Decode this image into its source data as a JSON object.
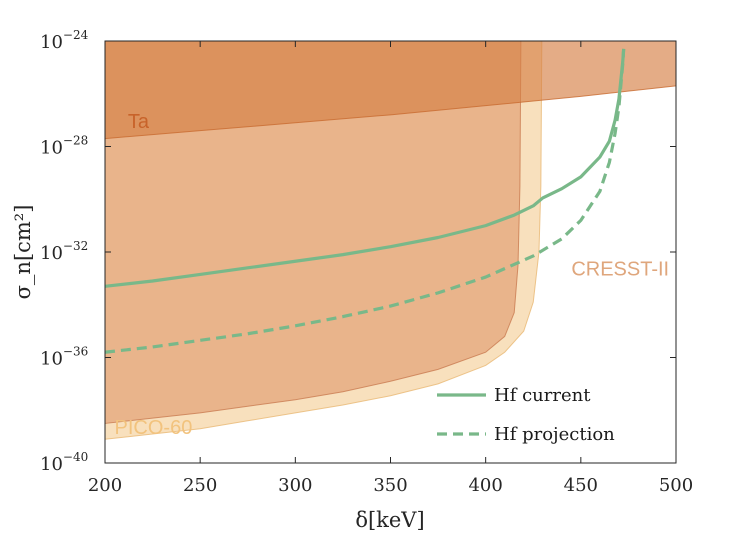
{
  "chart_data": {
    "type": "line",
    "xlabel": "δ[keV]",
    "ylabel": "σ_n[cm²]",
    "xlim": [
      200,
      500
    ],
    "ylim_log10": [
      -40,
      -24
    ],
    "x_ticks": [
      200,
      250,
      300,
      350,
      400,
      450,
      500
    ],
    "y_ticks": [
      {
        "base": "10",
        "exp": "−24",
        "value": -24
      },
      {
        "base": "10",
        "exp": "−28",
        "value": -28
      },
      {
        "base": "10",
        "exp": "−32",
        "value": -32
      },
      {
        "base": "10",
        "exp": "−36",
        "value": -36
      },
      {
        "base": "10",
        "exp": "−40",
        "value": -40
      }
    ],
    "regions": [
      {
        "name": "PICO-60",
        "color": "#f5cf9a",
        "edge_color": "#e8b873",
        "opacity": 0.65,
        "boundary_log10": [
          [
            200,
            -39.1
          ],
          [
            225,
            -38.9
          ],
          [
            250,
            -38.7
          ],
          [
            275,
            -38.4
          ],
          [
            300,
            -38.1
          ],
          [
            325,
            -37.8
          ],
          [
            350,
            -37.45
          ],
          [
            375,
            -37.0
          ],
          [
            400,
            -36.3
          ],
          [
            410,
            -35.8
          ],
          [
            420,
            -35.0
          ],
          [
            425,
            -33.9
          ],
          [
            428,
            -32.0
          ],
          [
            429,
            -29.5
          ],
          [
            429.5,
            -24
          ]
        ]
      },
      {
        "name": "CRESST-II",
        "color": "#d9885a",
        "edge_color": "#c97a50",
        "opacity": 0.5,
        "boundary_log10": [
          [
            200,
            -38.5
          ],
          [
            225,
            -38.3
          ],
          [
            250,
            -38.1
          ],
          [
            275,
            -37.85
          ],
          [
            300,
            -37.6
          ],
          [
            325,
            -37.3
          ],
          [
            350,
            -36.9
          ],
          [
            375,
            -36.45
          ],
          [
            400,
            -35.8
          ],
          [
            410,
            -35.2
          ],
          [
            415,
            -34.3
          ],
          [
            417,
            -32.5
          ],
          [
            418,
            -29.5
          ],
          [
            418.5,
            -24
          ]
        ]
      },
      {
        "name": "Ta",
        "color": "#d67f45",
        "edge_color": "#c86a30",
        "opacity": 0.65,
        "boundary_log10": [
          [
            200,
            -27.7
          ],
          [
            250,
            -27.4
          ],
          [
            300,
            -27.1
          ],
          [
            350,
            -26.8
          ],
          [
            400,
            -26.45
          ],
          [
            450,
            -26.1
          ],
          [
            500,
            -25.7
          ]
        ]
      }
    ],
    "series": [
      {
        "name": "Hf current",
        "color": "#79b889",
        "dash": "solid",
        "x": [
          200,
          225,
          250,
          275,
          300,
          325,
          350,
          375,
          400,
          415,
          425,
          430,
          440,
          450,
          460,
          465,
          468,
          470,
          471,
          472,
          472.5
        ],
        "y_log10": [
          -33.3,
          -33.1,
          -32.85,
          -32.6,
          -32.35,
          -32.1,
          -31.8,
          -31.45,
          -31.0,
          -30.6,
          -30.25,
          -29.95,
          -29.6,
          -29.15,
          -28.4,
          -27.8,
          -27.0,
          -26.2,
          -25.5,
          -24.8,
          -24.3
        ]
      },
      {
        "name": "Hf projection",
        "color": "#79b889",
        "dash": "dashed",
        "x": [
          200,
          225,
          250,
          275,
          300,
          325,
          350,
          375,
          400,
          425,
          440,
          450,
          460,
          465,
          468,
          470,
          471,
          472,
          472.5
        ],
        "y_log10": [
          -35.8,
          -35.6,
          -35.35,
          -35.1,
          -34.8,
          -34.45,
          -34.05,
          -33.55,
          -32.95,
          -32.15,
          -31.5,
          -30.8,
          -29.7,
          -28.6,
          -27.5,
          -26.5,
          -25.7,
          -24.9,
          -24.3
        ]
      }
    ],
    "annotations": [
      {
        "text": "Ta",
        "x": 212,
        "y_log10": -27.3
      },
      {
        "text": "CRESST-II",
        "x": 445,
        "y_log10": -32.9
      },
      {
        "text": "PICO-60",
        "x": 205,
        "y_log10": -38.9
      }
    ],
    "legend": {
      "placement": "lower-right",
      "entries": [
        "Hf current",
        "Hf projection"
      ]
    }
  }
}
